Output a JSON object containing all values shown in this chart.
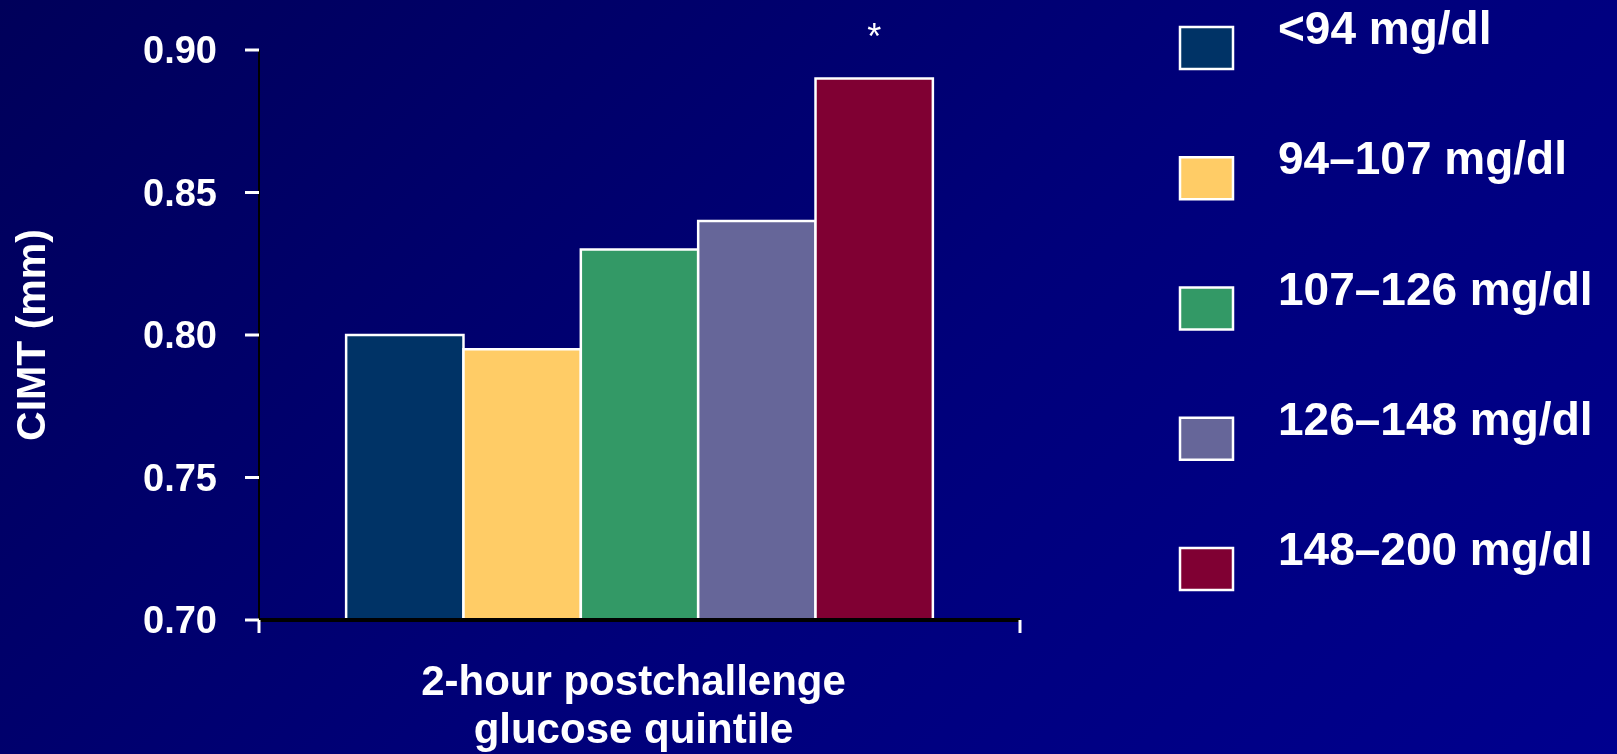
{
  "chart_data": {
    "type": "bar",
    "xlabel": "2-hour postchallenge glucose quintile",
    "ylabel": "CIMT (mm)",
    "categories": [
      null
    ],
    "series": [
      {
        "name": "<94 mg/dl",
        "color": "#003366",
        "values": [
          0.8
        ]
      },
      {
        "name": "94–107 mg/dl",
        "color": "#ffcc66",
        "values": [
          0.795
        ]
      },
      {
        "name": "107–126 mg/dl",
        "color": "#339966",
        "values": [
          0.83
        ]
      },
      {
        "name": "126–148 mg/dl",
        "color": "#666699",
        "values": [
          0.84
        ]
      },
      {
        "name": "148–200 mg/dl",
        "color": "#800033",
        "values": [
          0.89
        ]
      }
    ],
    "ylim": [
      0.7,
      0.9
    ],
    "yticks": [
      {
        "value": 0.7,
        "label": "0.70"
      },
      {
        "value": 0.75,
        "label": "0.75"
      },
      {
        "value": 0.8,
        "label": "0.80"
      },
      {
        "value": 0.85,
        "label": "0.85"
      },
      {
        "value": 0.9,
        "label": "0.90"
      }
    ],
    "legend": "right",
    "annotations": [
      {
        "text": "*",
        "y": 0.89
      }
    ]
  }
}
